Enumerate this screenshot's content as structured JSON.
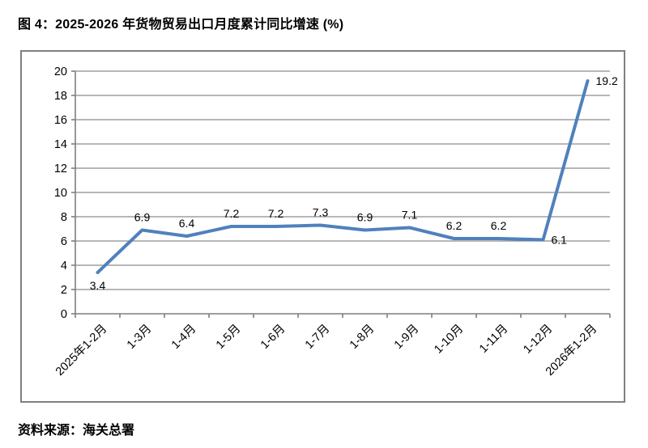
{
  "figure": {
    "title": "图 4：2025-2026 年货物贸易出口月度累计同比增速 (%)",
    "source": "资料来源：海关总署"
  },
  "chart_data": {
    "type": "line",
    "title": "图 4：2025-2026 年货物贸易出口月度累计同比增速 (%)",
    "categories": [
      "2025年1-2月",
      "1-3月",
      "1-4月",
      "1-5月",
      "1-6月",
      "1-7月",
      "1-8月",
      "1-9月",
      "1-10月",
      "1-11月",
      "1-12月",
      "2026年1-2月"
    ],
    "values": [
      3.4,
      6.9,
      6.4,
      7.2,
      7.2,
      7.3,
      6.9,
      7.1,
      6.2,
      6.2,
      6.1,
      19.2
    ],
    "data_label_positions": [
      "below",
      "above",
      "above",
      "above",
      "above",
      "above",
      "above",
      "above",
      "above",
      "above",
      "right",
      "right"
    ],
    "xlabel": "",
    "ylabel": "",
    "ylim": [
      0,
      20
    ],
    "yticks": [
      0,
      2,
      4,
      6,
      8,
      10,
      12,
      14,
      16,
      18,
      20
    ],
    "grid": true,
    "legend": "none",
    "x_tick_rotation": -45,
    "colors": {
      "line": "#4F81BD",
      "gridline": "#8C8C8C",
      "axis": "#7F7F7F",
      "text": "#000000",
      "chart_border": "#808080"
    }
  }
}
